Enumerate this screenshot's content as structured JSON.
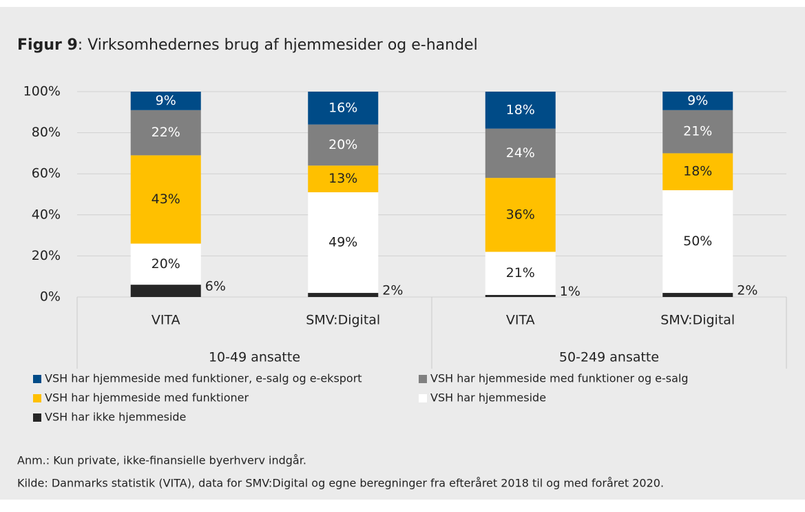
{
  "chart_data": {
    "type": "stacked_bar",
    "figure_label": "Figur 9",
    "title": ": Virksomhedernes brug af hjemmesider og e-handel",
    "categories": [
      "VITA",
      "SMV:Digital",
      "VITA",
      "SMV:Digital"
    ],
    "groups": [
      "10-49 ansatte",
      "50-249 ansatte"
    ],
    "series": [
      {
        "name": "VSH har ikke hjemmeside",
        "color": "#262626",
        "values": [
          6,
          2,
          1,
          2
        ],
        "value_labels": [
          "6%",
          "2%",
          "1%",
          "2%"
        ]
      },
      {
        "name": "VSH har hjemmeside",
        "color": "#ffffff",
        "values": [
          20,
          49,
          21,
          50
        ],
        "value_labels": [
          "20%",
          "49%",
          "21%",
          "50%"
        ]
      },
      {
        "name": "VSH har hjemmeside med funktioner",
        "color": "#ffc000",
        "values": [
          43,
          13,
          36,
          18
        ],
        "value_labels": [
          "43%",
          "13%",
          "36%",
          "18%"
        ]
      },
      {
        "name": "VSH har hjemmeside med funktioner og e-salg",
        "color": "#808080",
        "values": [
          22,
          20,
          24,
          21
        ],
        "value_labels": [
          "22%",
          "20%",
          "24%",
          "21%"
        ]
      },
      {
        "name": "VSH har hjemmeside med funktioner, e-salg og e-eksport",
        "color": "#004b87",
        "values": [
          9,
          16,
          18,
          9
        ],
        "value_labels": [
          "9%",
          "16%",
          "18%",
          "9%"
        ]
      }
    ],
    "ylim": [
      0,
      100
    ],
    "yticks": [
      {
        "value": 0,
        "label": "0%"
      },
      {
        "value": 20,
        "label": "20%"
      },
      {
        "value": 40,
        "label": "40%"
      },
      {
        "value": 60,
        "label": "60%"
      },
      {
        "value": 80,
        "label": "80%"
      },
      {
        "value": 100,
        "label": "100%"
      }
    ],
    "grid": true,
    "notes": [
      "Anm.: Kun private, ikke-finansielle byerhverv indgår.",
      "Kilde: Danmarks statistik (VITA), data for SMV:Digital og egne beregninger fra efteråret 2018 til og med foråret 2020."
    ]
  }
}
